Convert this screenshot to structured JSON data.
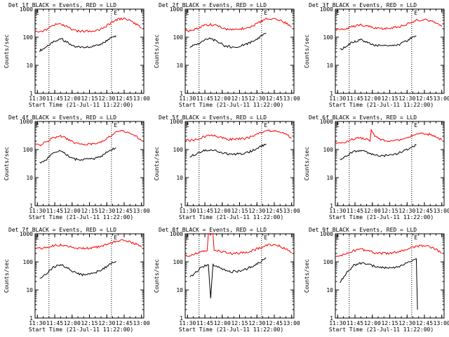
{
  "figure": {
    "x_axis_label": "Start Time (21-Jul-11 11:22:00)",
    "y_axis_label": "Counts/sec",
    "marker_label": "E",
    "colors": {
      "events": "#000000",
      "lld": "#ff0000",
      "axes": "#000000"
    }
  },
  "chart_data": [
    {
      "type": "line",
      "title": "Det 1f BLACK = Events, RED = LLD",
      "xlabel": "Start Time (21-Jul-11 11:22:00)",
      "ylabel": "Counts/sec",
      "yscale": "log",
      "ylim": [
        1,
        1000
      ],
      "yticks": [
        "1",
        "10",
        "100",
        "1000"
      ],
      "xlim": [
        11.4667,
        13.0333
      ],
      "xticks": [
        "11:30",
        "11:45",
        "12:00",
        "12:15",
        "12:30",
        "12:45",
        "13:00"
      ],
      "vlines": [
        11.6667,
        12.5667
      ],
      "marker_x": 12.6333,
      "series": [
        {
          "name": "Events",
          "times": [
            11.5333,
            11.6333,
            11.7333,
            11.8333,
            11.9333,
            12.0333,
            12.1333,
            12.2333,
            12.3333,
            12.4333,
            12.5333,
            12.6333
          ],
          "values": [
            33,
            45,
            70,
            90,
            65,
            47,
            44,
            45,
            48,
            58,
            88,
            115
          ]
        },
        {
          "name": "LLD",
          "times": [
            11.4667,
            11.5333,
            11.6333,
            11.7333,
            11.8333,
            11.9333,
            12.0333,
            12.1333,
            12.2333,
            12.3333,
            12.4333,
            12.5333,
            12.6333,
            12.7333,
            12.8333,
            12.9333,
            13.0
          ],
          "values": [
            160,
            150,
            190,
            270,
            300,
            230,
            170,
            160,
            165,
            170,
            200,
            290,
            420,
            460,
            390,
            280,
            210
          ]
        }
      ]
    },
    {
      "type": "line",
      "title": "Det 2f BLACK = Events, RED = LLD",
      "xlabel": "Start Time (21-Jul-11 11:22:00)",
      "ylabel": "Counts/sec",
      "yscale": "log",
      "ylim": [
        1,
        1000
      ],
      "yticks": [
        "1",
        "10",
        "100",
        "1000"
      ],
      "xlim": [
        11.4667,
        13.0333
      ],
      "xticks": [
        "11:30",
        "11:45",
        "12:00",
        "12:15",
        "12:30",
        "12:45",
        "13:00"
      ],
      "vlines": [
        11.6667,
        12.5667
      ],
      "marker_x": 12.6333,
      "series": [
        {
          "name": "Events",
          "times": [
            11.5333,
            11.6333,
            11.7333,
            11.8333,
            11.9333,
            12.0333,
            12.1333,
            12.2333,
            12.3333,
            12.4333,
            12.5333,
            12.6333
          ],
          "values": [
            45,
            55,
            80,
            90,
            70,
            50,
            45,
            47,
            55,
            70,
            100,
            140
          ]
        },
        {
          "name": "LLD",
          "times": [
            11.4667,
            11.5333,
            11.6333,
            11.7333,
            11.8333,
            11.9333,
            12.0333,
            12.1333,
            12.2333,
            12.3333,
            12.4333,
            12.5333,
            12.6333,
            12.7333,
            12.8333,
            12.9333,
            13.0
          ],
          "values": [
            170,
            170,
            200,
            260,
            280,
            250,
            200,
            190,
            195,
            210,
            250,
            340,
            450,
            470,
            410,
            300,
            230
          ]
        }
      ]
    },
    {
      "type": "line",
      "title": "Det 3f BLACK = Events, RED = LLD",
      "xlabel": "Start Time (21-Jul-11 11:22:00)",
      "ylabel": "Counts/sec",
      "yscale": "log",
      "ylim": [
        1,
        1000
      ],
      "yticks": [
        "1",
        "10",
        "100",
        "1000"
      ],
      "xlim": [
        11.4667,
        13.0333
      ],
      "xticks": [
        "11:30",
        "11:45",
        "12:00",
        "12:15",
        "12:30",
        "12:45",
        "13:00"
      ],
      "vlines": [
        11.6667,
        12.5667
      ],
      "marker_x": 12.6333,
      "series": [
        {
          "name": "Events",
          "times": [
            11.5333,
            11.6333,
            11.7333,
            11.8333,
            11.9333,
            12.0333,
            12.1333,
            12.2333,
            12.3333,
            12.4333,
            12.5333,
            12.6333
          ],
          "values": [
            35,
            50,
            70,
            80,
            65,
            52,
            50,
            48,
            50,
            62,
            85,
            110
          ]
        },
        {
          "name": "LLD",
          "times": [
            11.4667,
            11.5333,
            11.6333,
            11.7333,
            11.8333,
            11.9333,
            12.0333,
            12.1333,
            12.2333,
            12.3333,
            12.4333,
            12.5333,
            12.6333,
            12.7333,
            12.8333,
            12.9333,
            13.0
          ],
          "values": [
            190,
            190,
            210,
            250,
            270,
            250,
            215,
            205,
            210,
            220,
            260,
            320,
            400,
            420,
            380,
            300,
            240
          ]
        }
      ]
    },
    {
      "type": "line",
      "title": "Det 4f BLACK = Events, RED = LLD",
      "xlabel": "Start Time (21-Jul-11 11:22:00)",
      "ylabel": "Counts/sec",
      "yscale": "log",
      "ylim": [
        1,
        1000
      ],
      "yticks": [
        "1",
        "10",
        "100",
        "1000"
      ],
      "xlim": [
        11.4667,
        13.0333
      ],
      "xticks": [
        "11:30",
        "11:45",
        "12:00",
        "12:15",
        "12:30",
        "12:45",
        "13:00"
      ],
      "vlines": [
        11.6667,
        12.5667
      ],
      "marker_x": 12.6333,
      "series": [
        {
          "name": "Events",
          "times": [
            11.5333,
            11.6333,
            11.7333,
            11.8333,
            11.9333,
            12.0333,
            12.1333,
            12.2333,
            12.3333,
            12.4333,
            12.5333,
            12.6333
          ],
          "values": [
            33,
            45,
            75,
            90,
            62,
            46,
            43,
            45,
            48,
            60,
            88,
            115
          ]
        },
        {
          "name": "LLD",
          "times": [
            11.4667,
            11.5333,
            11.6333,
            11.7333,
            11.8333,
            11.9333,
            12.0333,
            12.1333,
            12.2333,
            12.3333,
            12.4333,
            12.5333,
            12.6333,
            12.7333,
            12.8333,
            12.9333,
            13.0
          ],
          "values": [
            150,
            140,
            190,
            270,
            300,
            240,
            170,
            150,
            155,
            165,
            200,
            280,
            420,
            460,
            390,
            280,
            200
          ]
        }
      ]
    },
    {
      "type": "line",
      "title": "Det 5f BLACK = Events, RED = LLD",
      "xlabel": "Start Time (21-Jul-11 11:22:00)",
      "ylabel": "Counts/sec",
      "yscale": "log",
      "ylim": [
        1,
        1000
      ],
      "yticks": [
        "1",
        "10",
        "100",
        "1000"
      ],
      "xlim": [
        11.4667,
        13.0333
      ],
      "xticks": [
        "11:30",
        "11:45",
        "12:00",
        "12:15",
        "12:30",
        "12:45",
        "13:00"
      ],
      "vlines": [
        11.6667,
        12.5667
      ],
      "marker_x": 12.6333,
      "series": [
        {
          "name": "Events",
          "times": [
            11.5333,
            11.6333,
            11.7333,
            11.8333,
            11.9333,
            12.0333,
            12.1333,
            12.2333,
            12.3333,
            12.4333,
            12.5333,
            12.6333
          ],
          "values": [
            55,
            70,
            90,
            100,
            85,
            72,
            68,
            70,
            75,
            90,
            120,
            160
          ]
        },
        {
          "name": "LLD",
          "times": [
            11.4667,
            11.5333,
            11.6333,
            11.7333,
            11.8333,
            11.9333,
            12.0333,
            12.1333,
            12.2333,
            12.3333,
            12.4333,
            12.5333,
            12.6333,
            12.7333,
            12.8333,
            12.9333,
            13.0
          ],
          "values": [
            220,
            210,
            230,
            290,
            320,
            290,
            240,
            230,
            235,
            250,
            290,
            380,
            460,
            480,
            430,
            330,
            250
          ]
        }
      ]
    },
    {
      "type": "line",
      "title": "Det 6f BLACK = Events, RED = LLD",
      "xlabel": "Start Time (21-Jul-11 11:22:00)",
      "ylabel": "Counts/sec",
      "yscale": "log",
      "ylim": [
        1,
        1000
      ],
      "yticks": [
        "1",
        "10",
        "100",
        "1000"
      ],
      "xlim": [
        11.4667,
        13.0333
      ],
      "xticks": [
        "11:30",
        "11:45",
        "12:00",
        "12:15",
        "12:30",
        "12:45",
        "13:00"
      ],
      "vlines": [
        11.6667,
        12.5667
      ],
      "marker_x": 12.6333,
      "series": [
        {
          "name": "Events",
          "times": [
            11.5333,
            11.6333,
            11.7333,
            11.8333,
            11.9333,
            12.0333,
            12.1333,
            12.2333,
            12.3333,
            12.4333,
            12.5333,
            12.6333
          ],
          "values": [
            45,
            60,
            85,
            95,
            75,
            62,
            60,
            62,
            68,
            82,
            110,
            145
          ]
        },
        {
          "name": "LLD",
          "times": [
            11.4667,
            11.5333,
            11.6333,
            11.7333,
            11.8333,
            11.9333,
            11.9667,
            11.9833,
            12.0333,
            12.1333,
            12.2333,
            12.3333,
            12.4333,
            12.5333,
            12.6333,
            12.7333,
            12.8333,
            12.9333,
            13.0
          ],
          "values": [
            170,
            170,
            190,
            240,
            260,
            230,
            200,
            480,
            300,
            220,
            200,
            205,
            230,
            290,
            360,
            380,
            340,
            270,
            220
          ]
        }
      ]
    },
    {
      "type": "line",
      "title": "Det 7f BLACK = Events, RED = LLD",
      "xlabel": "Start Time (21-Jul-11 11:22:00)",
      "ylabel": "Counts/sec",
      "yscale": "log",
      "ylim": [
        1,
        1000
      ],
      "yticks": [
        "1",
        "10",
        "100",
        "1000"
      ],
      "xlim": [
        11.4667,
        13.0333
      ],
      "xticks": [
        "11:30",
        "11:45",
        "12:00",
        "12:15",
        "12:30",
        "12:45",
        "13:00"
      ],
      "vlines": [
        11.6667,
        12.5667
      ],
      "marker_x": 12.6333,
      "series": [
        {
          "name": "Events",
          "times": [
            11.5333,
            11.6333,
            11.7333,
            11.8333,
            11.9333,
            12.0333,
            12.1333,
            12.2333,
            12.3333,
            12.4333,
            12.5333,
            12.6333
          ],
          "values": [
            25,
            40,
            65,
            80,
            60,
            42,
            35,
            37,
            42,
            52,
            80,
            105
          ]
        },
        {
          "name": "LLD",
          "times": [
            11.4667,
            11.5333,
            11.6333,
            11.7333,
            11.8333,
            11.9333,
            12.0333,
            12.1333,
            12.2333,
            12.3333,
            12.4333,
            12.5333,
            12.6333,
            12.7333,
            12.8333,
            12.9333,
            13.0
          ],
          "values": [
            300,
            300,
            330,
            380,
            400,
            360,
            320,
            300,
            310,
            330,
            370,
            450,
            550,
            580,
            520,
            420,
            330
          ]
        }
      ]
    },
    {
      "type": "line",
      "title": "Det 8f BLACK = Events, RED = LLD",
      "xlabel": "Start Time (21-Jul-11 11:22:00)",
      "ylabel": "Counts/sec",
      "yscale": "log",
      "ylim": [
        1,
        1000
      ],
      "yticks": [
        "1",
        "10",
        "100",
        "1000"
      ],
      "xlim": [
        11.4667,
        13.0333
      ],
      "xticks": [
        "11:30",
        "11:45",
        "12:00",
        "12:15",
        "12:30",
        "12:45",
        "13:00"
      ],
      "vlines": [
        11.6667,
        12.5667
      ],
      "marker_x": 12.6333,
      "series": [
        {
          "name": "Events",
          "times": [
            11.5333,
            11.6333,
            11.7,
            11.7333,
            11.8,
            11.8333,
            11.8667,
            11.9333,
            12.0333,
            12.1333,
            12.2333,
            12.3333,
            12.4333,
            12.5333,
            12.6333
          ],
          "values": [
            28,
            45,
            65,
            70,
            80,
            5,
            80,
            65,
            50,
            45,
            47,
            55,
            70,
            95,
            135
          ]
        },
        {
          "name": "LLD",
          "times": [
            11.4667,
            11.5333,
            11.6333,
            11.7333,
            11.7833,
            11.8,
            11.8667,
            11.8833,
            11.9333,
            12.0333,
            12.1333,
            12.2333,
            12.3333,
            12.4333,
            12.5333,
            12.6333,
            12.7333,
            12.8333,
            12.9333,
            13.0
          ],
          "values": [
            160,
            160,
            200,
            250,
            250,
            1000,
            1000,
            280,
            250,
            220,
            200,
            205,
            220,
            250,
            310,
            390,
            410,
            360,
            280,
            210
          ]
        }
      ]
    },
    {
      "type": "line",
      "title": "Det 9f BLACK = Events, RED = LLD",
      "xlabel": "Start Time (21-Jul-11 11:22:00)",
      "ylabel": "Counts/sec",
      "yscale": "log",
      "ylim": [
        1,
        1000
      ],
      "yticks": [
        "1",
        "10",
        "100",
        "1000"
      ],
      "xlim": [
        11.4667,
        13.0333
      ],
      "xticks": [
        "11:30",
        "11:45",
        "12:00",
        "12:15",
        "12:30",
        "12:45",
        "13:00"
      ],
      "vlines": [
        11.6667,
        12.5667
      ],
      "marker_x": 12.6333,
      "series": [
        {
          "name": "Events",
          "times": [
            11.5333,
            11.6333,
            11.7333,
            11.8333,
            11.9333,
            12.0333,
            12.1333,
            12.2333,
            12.3333,
            12.4333,
            12.5333,
            12.6,
            12.6333,
            12.65
          ],
          "values": [
            18,
            45,
            75,
            90,
            80,
            70,
            65,
            62,
            65,
            75,
            100,
            120,
            130,
            2
          ]
        },
        {
          "name": "LLD",
          "times": [
            11.4667,
            11.5333,
            11.6333,
            11.7333,
            11.8333,
            11.9333,
            12.0333,
            12.1333,
            12.2333,
            12.3333,
            12.4333,
            12.5333,
            12.6333,
            12.7333,
            12.8333,
            12.9333,
            13.0
          ],
          "values": [
            150,
            170,
            200,
            250,
            280,
            250,
            210,
            200,
            205,
            220,
            250,
            300,
            360,
            380,
            340,
            260,
            200
          ]
        }
      ]
    }
  ]
}
